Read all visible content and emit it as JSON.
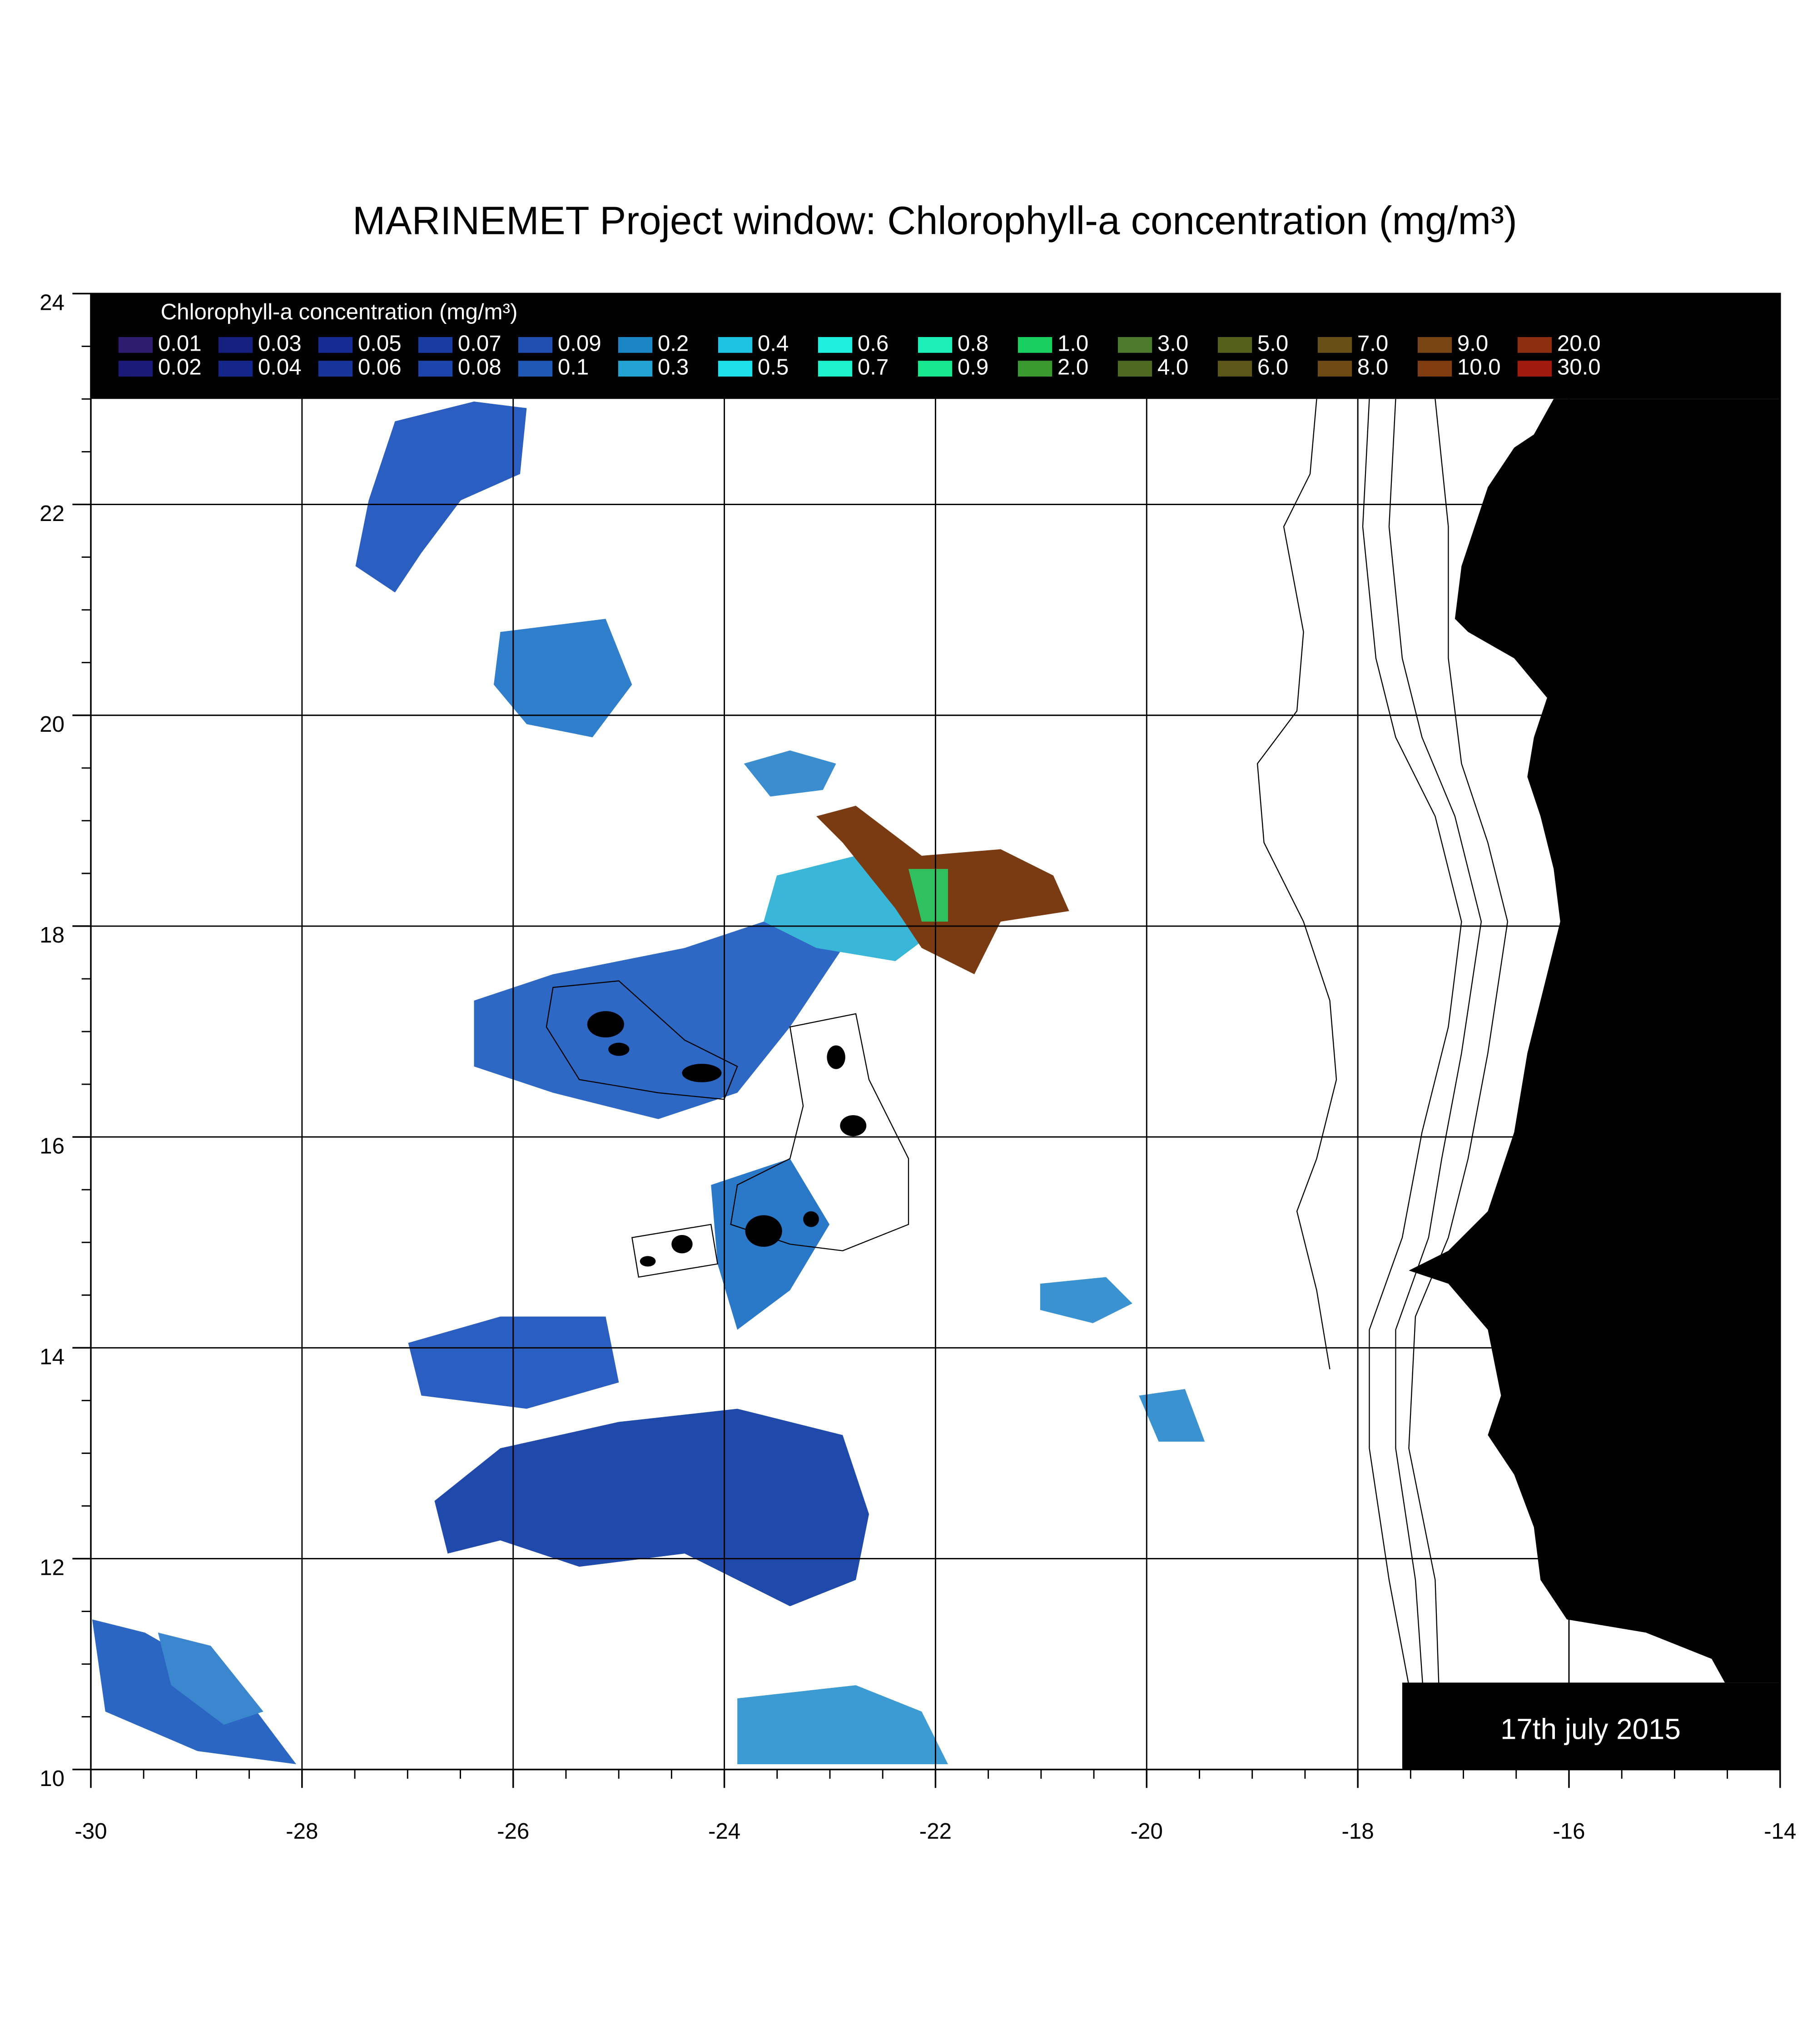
{
  "title": "MARINEMET Project window: Chlorophyll-a concentration (mg/m³)",
  "legend": {
    "title": "Chlorophyll-a concentration (mg/m³)",
    "items": [
      {
        "label": "0.01",
        "color": "#2d1b6e"
      },
      {
        "label": "0.02",
        "color": "#1b1a78"
      },
      {
        "label": "0.03",
        "color": "#16207f"
      },
      {
        "label": "0.04",
        "color": "#15268a"
      },
      {
        "label": "0.05",
        "color": "#162c92"
      },
      {
        "label": "0.06",
        "color": "#18339a"
      },
      {
        "label": "0.07",
        "color": "#1a3ba2"
      },
      {
        "label": "0.08",
        "color": "#1c44aa"
      },
      {
        "label": "0.09",
        "color": "#1e4eb0"
      },
      {
        "label": "0.1",
        "color": "#2058b5"
      },
      {
        "label": "0.2",
        "color": "#1a86c6"
      },
      {
        "label": "0.3",
        "color": "#22a3d4"
      },
      {
        "label": "0.4",
        "color": "#1ec3e2"
      },
      {
        "label": "0.5",
        "color": "#1ee0ea"
      },
      {
        "label": "0.6",
        "color": "#1ef0e0"
      },
      {
        "label": "0.7",
        "color": "#1ef2cc"
      },
      {
        "label": "0.8",
        "color": "#1cf0b8"
      },
      {
        "label": "0.9",
        "color": "#18e890"
      },
      {
        "label": "1.0",
        "color": "#18d060"
      },
      {
        "label": "2.0",
        "color": "#3a9a30"
      },
      {
        "label": "3.0",
        "color": "#4a7a2a"
      },
      {
        "label": "4.0",
        "color": "#4e6a20"
      },
      {
        "label": "5.0",
        "color": "#55601a"
      },
      {
        "label": "6.0",
        "color": "#5c5718"
      },
      {
        "label": "7.0",
        "color": "#665016"
      },
      {
        "label": "8.0",
        "color": "#6e4a14"
      },
      {
        "label": "9.0",
        "color": "#774412"
      },
      {
        "label": "10.0",
        "color": "#803e10"
      },
      {
        "label": "20.0",
        "color": "#8e2e10"
      },
      {
        "label": "30.0",
        "color": "#a01a0e"
      }
    ]
  },
  "axes": {
    "xlim": [
      -30,
      -14
    ],
    "ylim": [
      10,
      24
    ],
    "xticks": [
      -30,
      -28,
      -26,
      -24,
      -22,
      -20,
      -18,
      -16,
      -14
    ],
    "yticks": [
      10,
      12,
      14,
      16,
      18,
      20,
      22,
      24
    ],
    "grid": true
  },
  "date": "17th  july  2015"
}
